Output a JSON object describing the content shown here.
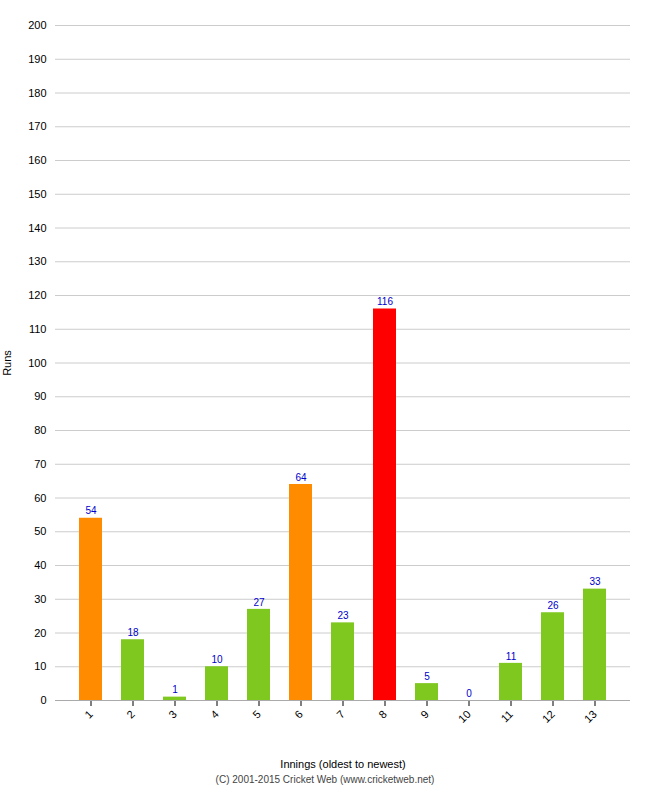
{
  "chart_data": {
    "type": "bar",
    "xlabel": "Innings (oldest to newest)",
    "ylabel": "Runs",
    "categories": [
      "1",
      "2",
      "3",
      "4",
      "5",
      "6",
      "7",
      "8",
      "9",
      "10",
      "11",
      "12",
      "13"
    ],
    "values": [
      54,
      18,
      1,
      10,
      27,
      64,
      23,
      116,
      5,
      0,
      11,
      26,
      33
    ],
    "colors": [
      "#ff8c00",
      "#7fc820",
      "#7fc820",
      "#7fc820",
      "#7fc820",
      "#ff8c00",
      "#7fc820",
      "#ff0000",
      "#7fc820",
      "#7fc820",
      "#7fc820",
      "#7fc820",
      "#7fc820"
    ],
    "ylim": [
      0,
      200
    ],
    "yticks": [
      0,
      10,
      20,
      30,
      40,
      50,
      60,
      70,
      80,
      90,
      100,
      110,
      120,
      130,
      140,
      150,
      160,
      170,
      180,
      190,
      200
    ],
    "grid": true,
    "data_labels": true,
    "annotations": [
      "(C) 2001-2015 Cricket Web (www.cricketweb.net)"
    ]
  }
}
